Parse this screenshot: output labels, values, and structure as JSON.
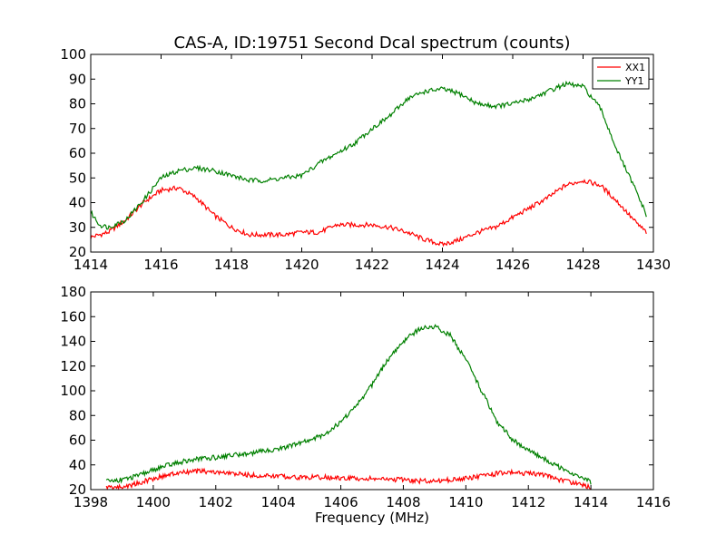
{
  "chart_data": [
    {
      "type": "line",
      "title": "CAS-A, ID:19751 Second Dcal spectrum (counts)",
      "xlabel": "",
      "ylabel": "",
      "xlim": [
        1414,
        1430
      ],
      "ylim": [
        20,
        100
      ],
      "xticks": [
        "1414",
        "1416",
        "1418",
        "1420",
        "1422",
        "1424",
        "1426",
        "1428",
        "1430"
      ],
      "yticks": [
        "20",
        "30",
        "40",
        "50",
        "60",
        "70",
        "80",
        "90",
        "100"
      ],
      "grid": false,
      "legend": {
        "position": "top-right",
        "entries": [
          "XX1",
          "YY1"
        ]
      },
      "series": [
        {
          "name": "XX1",
          "color": "#ff0000",
          "x": [
            1414.0,
            1414.5,
            1415.0,
            1415.5,
            1416.0,
            1416.5,
            1417.0,
            1417.5,
            1418.0,
            1418.5,
            1419.0,
            1419.5,
            1420.0,
            1420.5,
            1421.0,
            1421.5,
            1422.0,
            1422.5,
            1423.0,
            1423.5,
            1424.0,
            1424.5,
            1425.0,
            1425.5,
            1426.0,
            1426.5,
            1427.0,
            1427.5,
            1428.0,
            1428.5,
            1429.0,
            1429.5,
            1429.8
          ],
          "y": [
            26,
            28,
            33,
            40,
            45,
            46,
            42,
            35,
            30,
            27,
            27,
            27,
            28,
            28,
            31,
            31,
            31,
            30,
            28,
            25,
            23,
            25,
            28,
            30,
            34,
            38,
            42,
            47,
            49,
            47,
            40,
            32,
            28
          ]
        },
        {
          "name": "YY1",
          "color": "#008000",
          "x": [
            1414.0,
            1414.25,
            1414.5,
            1415.0,
            1415.5,
            1416.0,
            1416.5,
            1417.0,
            1417.5,
            1418.0,
            1418.5,
            1419.0,
            1419.5,
            1420.0,
            1420.5,
            1421.0,
            1421.5,
            1422.0,
            1422.5,
            1423.0,
            1423.5,
            1424.0,
            1424.5,
            1425.0,
            1425.5,
            1426.0,
            1426.5,
            1427.0,
            1427.5,
            1428.0,
            1428.5,
            1429.0,
            1429.5,
            1429.8
          ],
          "y": [
            36,
            31,
            30,
            33,
            41,
            50,
            53,
            54,
            53,
            51,
            49,
            49,
            50,
            51,
            56,
            60,
            64,
            70,
            75,
            82,
            85,
            86,
            84,
            80,
            79,
            80,
            82,
            85,
            88,
            87,
            78,
            60,
            45,
            35
          ]
        }
      ]
    },
    {
      "type": "line",
      "title": "",
      "xlabel": "Frequency (MHz)",
      "ylabel": "",
      "xlim": [
        1398,
        1416
      ],
      "ylim": [
        20,
        180
      ],
      "xticks": [
        "1398",
        "1400",
        "1402",
        "1404",
        "1406",
        "1408",
        "1410",
        "1412",
        "1414",
        "1416"
      ],
      "yticks": [
        "20",
        "40",
        "60",
        "80",
        "100",
        "120",
        "140",
        "160",
        "180"
      ],
      "grid": false,
      "series": [
        {
          "name": "XX1",
          "color": "#ff0000",
          "x": [
            1398.5,
            1399.0,
            1399.5,
            1400.0,
            1400.5,
            1401.0,
            1401.5,
            1402.0,
            1402.5,
            1403.0,
            1403.5,
            1404.0,
            1404.5,
            1405.0,
            1405.5,
            1406.0,
            1406.5,
            1407.0,
            1407.5,
            1408.0,
            1408.5,
            1409.0,
            1409.5,
            1410.0,
            1410.5,
            1411.0,
            1411.5,
            1412.0,
            1412.5,
            1413.0,
            1413.5,
            1414.0
          ],
          "y": [
            22,
            22,
            25,
            29,
            32,
            34,
            35,
            34,
            33,
            32,
            31,
            31,
            30,
            30,
            30,
            29,
            29,
            29,
            28,
            28,
            27,
            27,
            28,
            29,
            31,
            33,
            34,
            33,
            32,
            28,
            25,
            22
          ]
        },
        {
          "name": "YY1",
          "color": "#008000",
          "x": [
            1398.5,
            1399.0,
            1399.5,
            1400.0,
            1400.5,
            1401.0,
            1401.5,
            1402.0,
            1402.5,
            1403.0,
            1403.5,
            1404.0,
            1404.5,
            1405.0,
            1405.5,
            1406.0,
            1406.5,
            1407.0,
            1407.5,
            1408.0,
            1408.5,
            1409.0,
            1409.5,
            1410.0,
            1410.5,
            1411.0,
            1411.5,
            1412.0,
            1412.5,
            1413.0,
            1413.5,
            1414.0
          ],
          "y": [
            27,
            28,
            31,
            36,
            40,
            43,
            45,
            46,
            48,
            49,
            51,
            53,
            56,
            60,
            65,
            75,
            88,
            105,
            125,
            140,
            150,
            152,
            145,
            125,
            100,
            75,
            60,
            52,
            45,
            38,
            32,
            26
          ]
        }
      ]
    }
  ]
}
